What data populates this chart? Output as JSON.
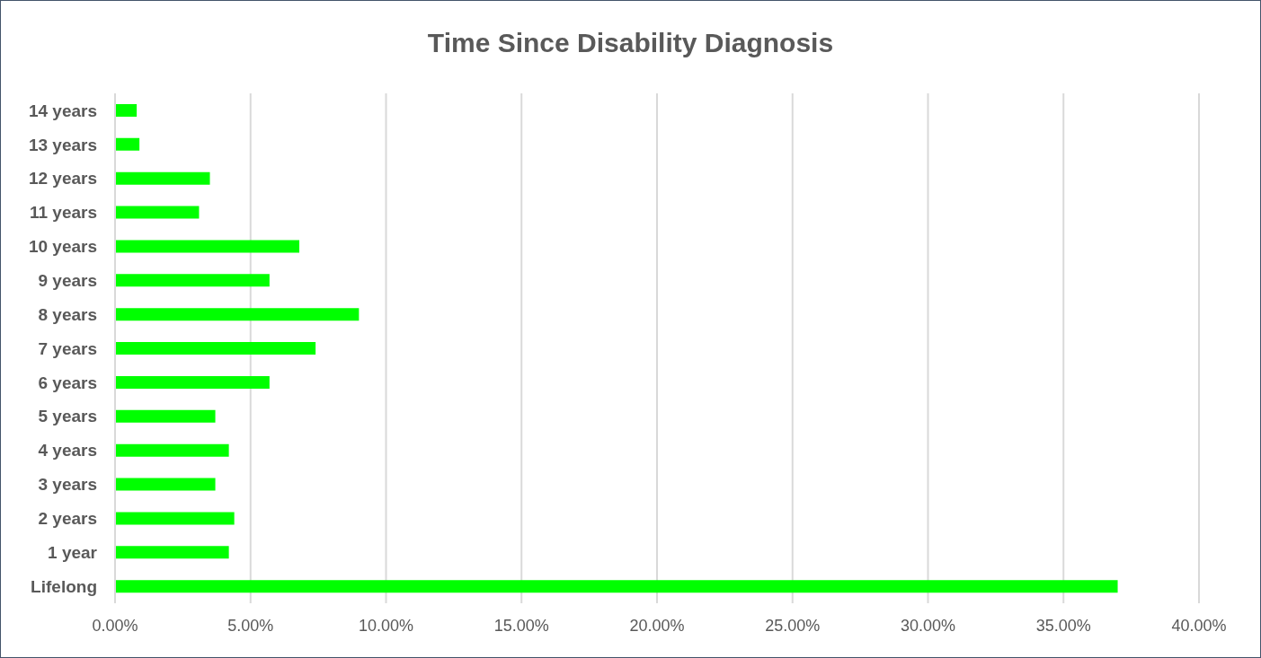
{
  "chart_data": {
    "type": "bar",
    "orientation": "horizontal",
    "title": "Time Since Disability Diagnosis",
    "categories": [
      "14 years",
      "13 years",
      "12 years",
      "11 years",
      "10 years",
      "9 years",
      "8 years",
      "7 years",
      "6 years",
      "5 years",
      "4 years",
      "3 years",
      "2 years",
      "1 year",
      "Lifelong"
    ],
    "values": [
      0.8,
      0.9,
      3.5,
      3.1,
      6.8,
      5.7,
      9.0,
      7.4,
      5.7,
      3.7,
      4.2,
      3.7,
      4.4,
      4.2,
      37.0
    ],
    "color": "#00ff00",
    "xlim": [
      0,
      40
    ],
    "xticks": [
      {
        "value": 0,
        "label": "0.00%"
      },
      {
        "value": 5,
        "label": "5.00%"
      },
      {
        "value": 10,
        "label": "10.00%"
      },
      {
        "value": 15,
        "label": "15.00%"
      },
      {
        "value": 20,
        "label": "20.00%"
      },
      {
        "value": 25,
        "label": "25.00%"
      },
      {
        "value": 30,
        "label": "30.00%"
      },
      {
        "value": 35,
        "label": "35.00%"
      },
      {
        "value": 40,
        "label": "40.00%"
      }
    ],
    "grid": "x"
  }
}
